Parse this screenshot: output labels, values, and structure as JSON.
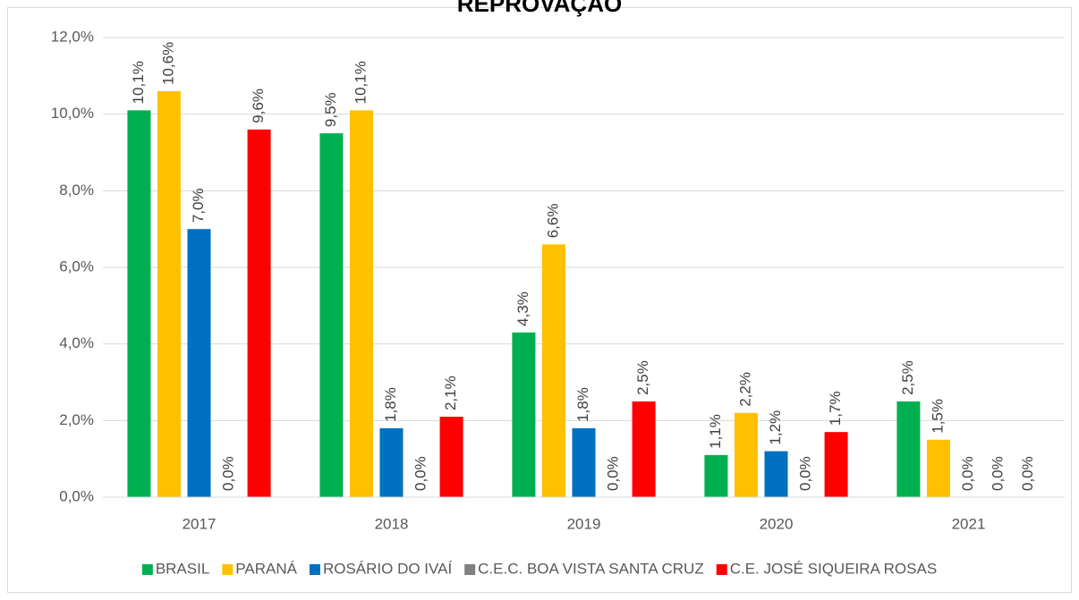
{
  "chart_data": {
    "type": "bar",
    "title": "REPROVAÇÃO",
    "categories": [
      "2017",
      "2018",
      "2019",
      "2020",
      "2021"
    ],
    "series": [
      {
        "name": "BRASIL",
        "color": "#00b050",
        "values": [
          10.1,
          9.5,
          4.3,
          1.1,
          2.5
        ],
        "value_labels": [
          "10,1%",
          "9,5%",
          "4,3%",
          "1,1%",
          "2,5%"
        ]
      },
      {
        "name": "PARANÁ",
        "color": "#ffc000",
        "values": [
          10.6,
          10.1,
          6.6,
          2.2,
          1.5
        ],
        "value_labels": [
          "10,6%",
          "10,1%",
          "6,6%",
          "2,2%",
          "1,5%"
        ]
      },
      {
        "name": "ROSÁRIO DO IVAÍ",
        "color": "#0070c0",
        "values": [
          7.0,
          1.8,
          1.8,
          1.2,
          0.0
        ],
        "value_labels": [
          "7,0%",
          "1,8%",
          "1,8%",
          "1,2%",
          "0,0%"
        ]
      },
      {
        "name": "C.E.C. BOA VISTA SANTA CRUZ",
        "color": "#808080",
        "values": [
          0.0,
          0.0,
          0.0,
          0.0,
          0.0
        ],
        "value_labels": [
          "0,0%",
          "0,0%",
          "0,0%",
          "0,0%",
          "0,0%"
        ]
      },
      {
        "name": "C.E. JOSÉ SIQUEIRA ROSAS",
        "color": "#ff0000",
        "values": [
          9.6,
          2.1,
          2.5,
          1.7,
          0.0
        ],
        "value_labels": [
          "9,6%",
          "2,1%",
          "2,5%",
          "1,7%",
          "0,0%"
        ]
      }
    ],
    "ylim": [
      0,
      12
    ],
    "yticks": [
      {
        "value": 0,
        "label": "0,0%"
      },
      {
        "value": 2,
        "label": "2,0%"
      },
      {
        "value": 4,
        "label": "4,0%"
      },
      {
        "value": 6,
        "label": "6,0%"
      },
      {
        "value": 8,
        "label": "8,0%"
      },
      {
        "value": 10,
        "label": "10,0%"
      },
      {
        "value": 12,
        "label": "12,0%"
      }
    ],
    "grid": true,
    "legend": "bottom"
  }
}
